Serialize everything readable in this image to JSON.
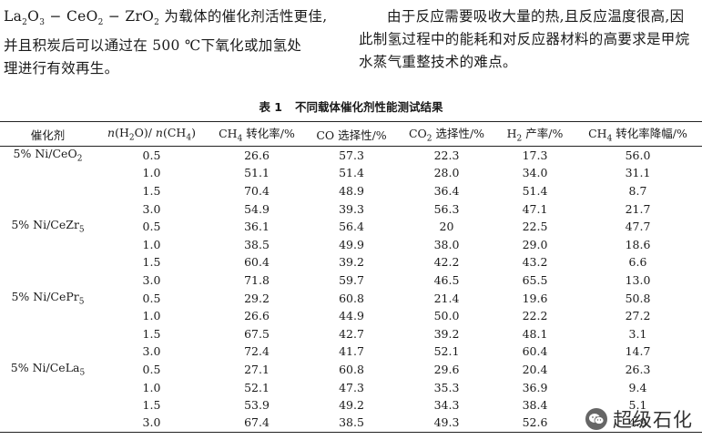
{
  "paragraph_left": {
    "line1_pre": "La",
    "line1_sub1": "2",
    "line1_mid1": "O",
    "line1_sub2": "3",
    "line1_mid2": " − CeO",
    "line1_sub3": "2",
    "line1_mid3": " − ZrO",
    "line1_sub4": "2",
    "line1_post": " 为载体的催化剂活性更佳,",
    "line2": "并且积炭后可以通过在 500 ℃下氧化或加氢处",
    "line3": "理进行有效再生。"
  },
  "paragraph_right": {
    "text": "由于反应需要吸收大量的热,且反应温度很高,因此制氢过程中的能耗和对反应器材料的高要求是甲烷水蒸气重整技术的难点。"
  },
  "table_caption": {
    "label": "表 1",
    "title": "不同载体催化剂性能测试结果"
  },
  "table": {
    "headers": {
      "catalyst": "催化剂",
      "ratio_n1": "n",
      "ratio_p1": "(H",
      "ratio_s1": "2",
      "ratio_p2": "O)/ ",
      "ratio_n2": "n",
      "ratio_p3": "(CH",
      "ratio_s2": "4",
      "ratio_p4": ")",
      "conv_pre": "CH",
      "conv_sub": "4",
      "conv_post": " 转化率/%",
      "co_sel": "CO 选择性/%",
      "co2_pre": "CO",
      "co2_sub": "2",
      "co2_post": " 选择性/%",
      "h2_pre": "H",
      "h2_sub": "2",
      "h2_post": " 产率/%",
      "drop_pre": "CH",
      "drop_sub": "4",
      "drop_post": " 转化率降幅/%"
    },
    "groups": [
      {
        "catalyst_pre": "5%  Ni/CeO",
        "catalyst_sub": "2",
        "rows": [
          {
            "ratio": "0.5",
            "ch4": "26.6",
            "co": "57.3",
            "co2": "22.3",
            "h2": "17.3",
            "drop": "56.0"
          },
          {
            "ratio": "1.0",
            "ch4": "51.1",
            "co": "51.4",
            "co2": "28.0",
            "h2": "34.0",
            "drop": "31.1"
          },
          {
            "ratio": "1.5",
            "ch4": "70.4",
            "co": "48.9",
            "co2": "36.4",
            "h2": "51.4",
            "drop": "8.7"
          },
          {
            "ratio": "3.0",
            "ch4": "54.9",
            "co": "39.3",
            "co2": "56.3",
            "h2": "47.1",
            "drop": "21.7"
          }
        ]
      },
      {
        "catalyst_pre": "5%  Ni/CeZr",
        "catalyst_sub": "5",
        "rows": [
          {
            "ratio": "0.5",
            "ch4": "36.1",
            "co": "56.4",
            "co2": "20",
            "h2": "22.5",
            "drop": "47.7"
          },
          {
            "ratio": "1.0",
            "ch4": "38.5",
            "co": "49.9",
            "co2": "38.0",
            "h2": "29.0",
            "drop": "18.6"
          },
          {
            "ratio": "1.5",
            "ch4": "60.4",
            "co": "39.2",
            "co2": "42.2",
            "h2": "43.2",
            "drop": "6.6"
          },
          {
            "ratio": "3.0",
            "ch4": "71.8",
            "co": "59.7",
            "co2": "46.5",
            "h2": "65.5",
            "drop": "13.0"
          }
        ]
      },
      {
        "catalyst_pre": "5%  Ni/CePr",
        "catalyst_sub": "5",
        "rows": [
          {
            "ratio": "0.5",
            "ch4": "29.2",
            "co": "60.8",
            "co2": "21.4",
            "h2": "19.6",
            "drop": "50.8"
          },
          {
            "ratio": "1.0",
            "ch4": "26.6",
            "co": "44.9",
            "co2": "50.0",
            "h2": "22.2",
            "drop": "27.2"
          },
          {
            "ratio": "1.5",
            "ch4": "67.5",
            "co": "42.7",
            "co2": "39.2",
            "h2": "48.1",
            "drop": "3.1"
          },
          {
            "ratio": "3.0",
            "ch4": "72.4",
            "co": "41.7",
            "co2": "52.1",
            "h2": "60.4",
            "drop": "14.7"
          }
        ]
      },
      {
        "catalyst_pre": "5%  Ni/CeLa",
        "catalyst_sub": "5",
        "rows": [
          {
            "ratio": "0.5",
            "ch4": "27.1",
            "co": "60.8",
            "co2": "29.6",
            "h2": "20.4",
            "drop": "26.3"
          },
          {
            "ratio": "1.0",
            "ch4": "52.1",
            "co": "47.3",
            "co2": "35.3",
            "h2": "36.9",
            "drop": "9.4"
          },
          {
            "ratio": "1.5",
            "ch4": "53.9",
            "co": "49.2",
            "co2": "34.3",
            "h2": "38.4",
            "drop": "5.1"
          },
          {
            "ratio": "3.0",
            "ch4": "67.4",
            "co": "38.5",
            "co2": "49.3",
            "h2": "52.6",
            "drop": "4.9"
          }
        ]
      }
    ]
  },
  "watermark": {
    "text": "超级石化",
    "icon": "wechat-icon"
  }
}
